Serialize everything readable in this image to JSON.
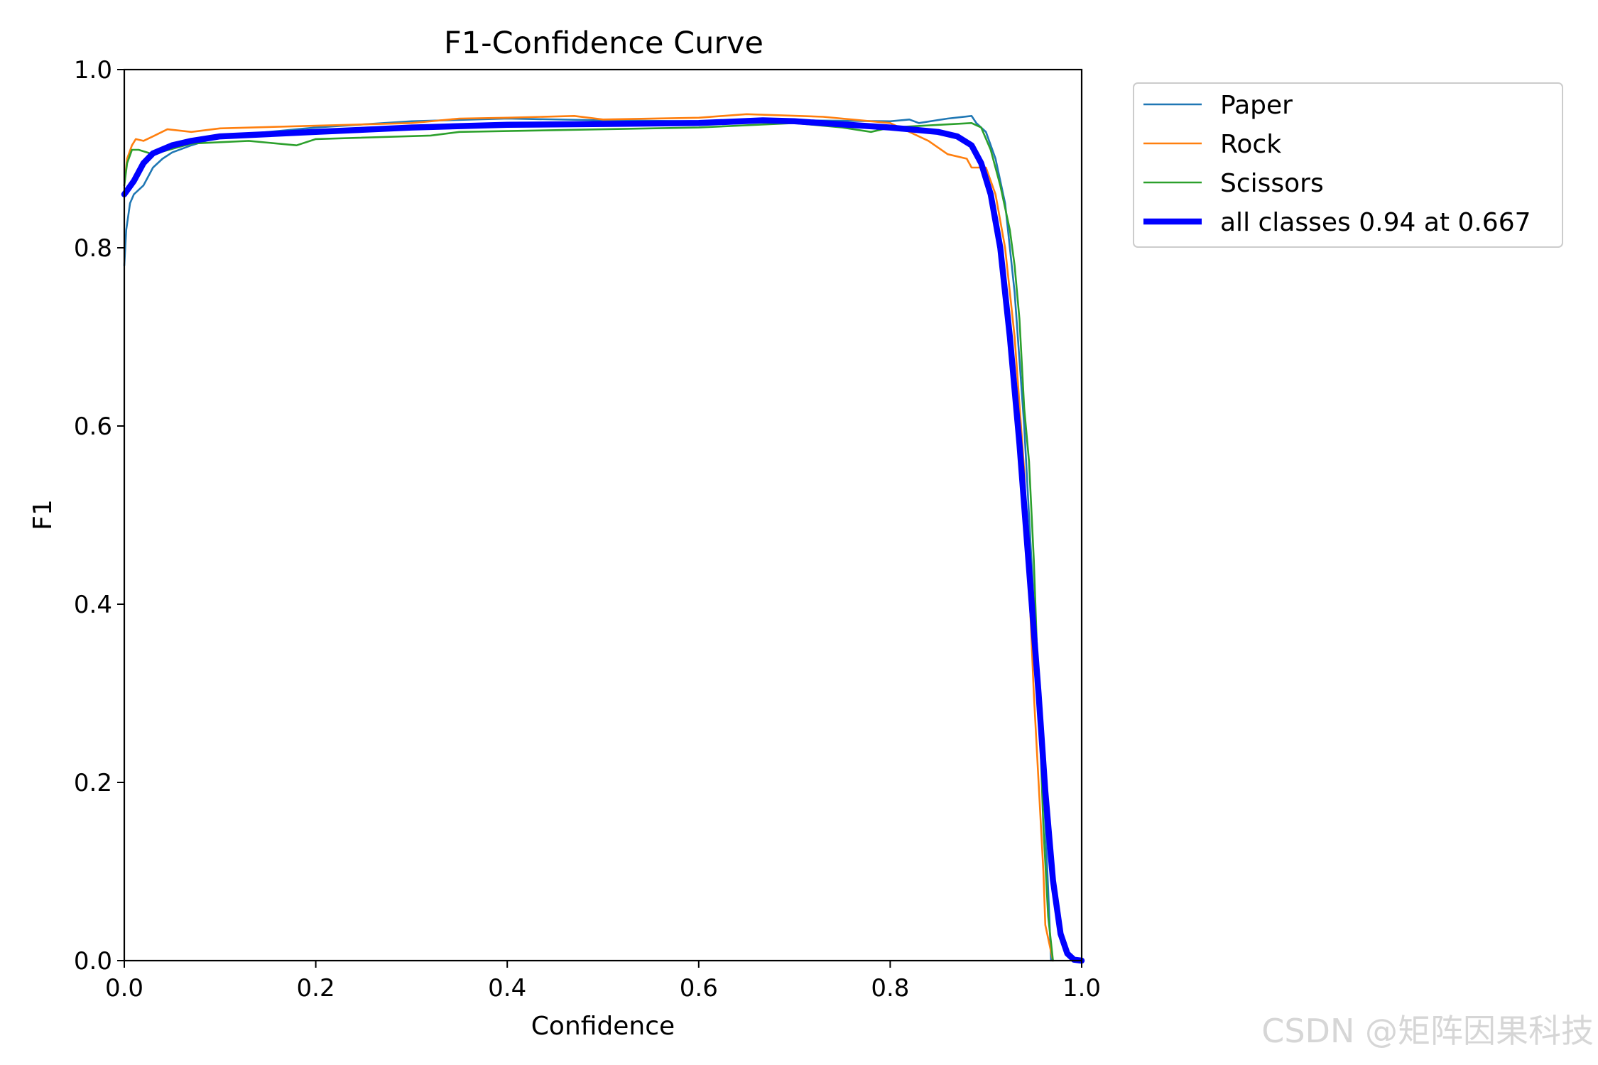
{
  "chart_data": {
    "type": "line",
    "title": "F1-Confidence Curve",
    "xlabel": "Confidence",
    "ylabel": "F1",
    "xlim": [
      0.0,
      1.0
    ],
    "ylim": [
      0.0,
      1.0
    ],
    "xticks": [
      "0.0",
      "0.2",
      "0.4",
      "0.6",
      "0.8",
      "1.0"
    ],
    "yticks": [
      "0.0",
      "0.2",
      "0.4",
      "0.6",
      "0.8",
      "1.0"
    ],
    "grid": false,
    "legend_position": "outside-top-right",
    "series": [
      {
        "name": "Paper",
        "color": "#1f77b4",
        "points": [
          [
            0.0,
            0.78
          ],
          [
            0.002,
            0.82
          ],
          [
            0.006,
            0.85
          ],
          [
            0.01,
            0.86
          ],
          [
            0.02,
            0.87
          ],
          [
            0.025,
            0.88
          ],
          [
            0.03,
            0.89
          ],
          [
            0.04,
            0.9
          ],
          [
            0.05,
            0.907
          ],
          [
            0.07,
            0.915
          ],
          [
            0.1,
            0.925
          ],
          [
            0.2,
            0.935
          ],
          [
            0.3,
            0.942
          ],
          [
            0.4,
            0.945
          ],
          [
            0.5,
            0.943
          ],
          [
            0.6,
            0.942
          ],
          [
            0.7,
            0.943
          ],
          [
            0.8,
            0.942
          ],
          [
            0.82,
            0.944
          ],
          [
            0.83,
            0.94
          ],
          [
            0.86,
            0.945
          ],
          [
            0.885,
            0.948
          ],
          [
            0.89,
            0.94
          ],
          [
            0.9,
            0.93
          ],
          [
            0.91,
            0.9
          ],
          [
            0.92,
            0.85
          ],
          [
            0.93,
            0.75
          ],
          [
            0.94,
            0.6
          ],
          [
            0.95,
            0.4
          ],
          [
            0.955,
            0.3
          ],
          [
            0.96,
            0.2
          ],
          [
            0.965,
            0.08
          ],
          [
            0.968,
            0.0
          ]
        ]
      },
      {
        "name": "Rock",
        "color": "#ff7f0e",
        "points": [
          [
            0.0,
            0.87
          ],
          [
            0.003,
            0.9
          ],
          [
            0.008,
            0.915
          ],
          [
            0.012,
            0.922
          ],
          [
            0.02,
            0.92
          ],
          [
            0.03,
            0.925
          ],
          [
            0.045,
            0.933
          ],
          [
            0.07,
            0.93
          ],
          [
            0.1,
            0.934
          ],
          [
            0.2,
            0.937
          ],
          [
            0.3,
            0.94
          ],
          [
            0.35,
            0.945
          ],
          [
            0.4,
            0.946
          ],
          [
            0.47,
            0.948
          ],
          [
            0.5,
            0.944
          ],
          [
            0.6,
            0.946
          ],
          [
            0.65,
            0.95
          ],
          [
            0.73,
            0.947
          ],
          [
            0.8,
            0.94
          ],
          [
            0.82,
            0.93
          ],
          [
            0.84,
            0.92
          ],
          [
            0.86,
            0.905
          ],
          [
            0.88,
            0.9
          ],
          [
            0.885,
            0.89
          ],
          [
            0.9,
            0.89
          ],
          [
            0.91,
            0.86
          ],
          [
            0.92,
            0.8
          ],
          [
            0.93,
            0.7
          ],
          [
            0.94,
            0.55
          ],
          [
            0.95,
            0.3
          ],
          [
            0.96,
            0.1
          ],
          [
            0.962,
            0.04
          ],
          [
            0.97,
            0.0
          ]
        ]
      },
      {
        "name": "Scissors",
        "color": "#2ca02c",
        "points": [
          [
            0.0,
            0.87
          ],
          [
            0.003,
            0.895
          ],
          [
            0.008,
            0.91
          ],
          [
            0.015,
            0.91
          ],
          [
            0.03,
            0.905
          ],
          [
            0.07,
            0.917
          ],
          [
            0.13,
            0.92
          ],
          [
            0.18,
            0.915
          ],
          [
            0.2,
            0.922
          ],
          [
            0.32,
            0.926
          ],
          [
            0.35,
            0.93
          ],
          [
            0.5,
            0.933
          ],
          [
            0.6,
            0.935
          ],
          [
            0.7,
            0.94
          ],
          [
            0.75,
            0.935
          ],
          [
            0.78,
            0.93
          ],
          [
            0.8,
            0.935
          ],
          [
            0.885,
            0.94
          ],
          [
            0.895,
            0.935
          ],
          [
            0.905,
            0.91
          ],
          [
            0.915,
            0.87
          ],
          [
            0.925,
            0.82
          ],
          [
            0.93,
            0.78
          ],
          [
            0.935,
            0.72
          ],
          [
            0.94,
            0.62
          ],
          [
            0.945,
            0.56
          ],
          [
            0.95,
            0.45
          ],
          [
            0.955,
            0.3
          ],
          [
            0.96,
            0.15
          ],
          [
            0.965,
            0.05
          ],
          [
            0.97,
            0.0
          ]
        ]
      },
      {
        "name": "all classes 0.94 at 0.667",
        "color": "#0000ff",
        "points": [
          [
            0.0,
            0.86
          ],
          [
            0.01,
            0.875
          ],
          [
            0.02,
            0.895
          ],
          [
            0.03,
            0.906
          ],
          [
            0.05,
            0.915
          ],
          [
            0.07,
            0.92
          ],
          [
            0.1,
            0.925
          ],
          [
            0.2,
            0.93
          ],
          [
            0.3,
            0.935
          ],
          [
            0.4,
            0.938
          ],
          [
            0.5,
            0.939
          ],
          [
            0.6,
            0.94
          ],
          [
            0.667,
            0.943
          ],
          [
            0.7,
            0.942
          ],
          [
            0.8,
            0.935
          ],
          [
            0.85,
            0.93
          ],
          [
            0.87,
            0.925
          ],
          [
            0.885,
            0.915
          ],
          [
            0.895,
            0.895
          ],
          [
            0.905,
            0.86
          ],
          [
            0.915,
            0.8
          ],
          [
            0.925,
            0.7
          ],
          [
            0.935,
            0.58
          ],
          [
            0.945,
            0.44
          ],
          [
            0.955,
            0.3
          ],
          [
            0.962,
            0.19
          ],
          [
            0.97,
            0.09
          ],
          [
            0.978,
            0.03
          ],
          [
            0.985,
            0.008
          ],
          [
            0.992,
            0.001
          ],
          [
            1.0,
            0.0
          ]
        ]
      }
    ]
  },
  "watermark": "CSDN @矩阵因果科技"
}
